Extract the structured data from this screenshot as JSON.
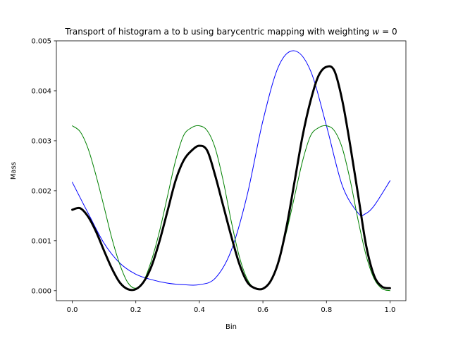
{
  "chart_data": {
    "type": "line",
    "title": "Transport of histogram a to b using barycentric mapping with weighting $w=0$",
    "xlabel": "Bin",
    "ylabel": "Mass",
    "xlim": [
      -0.05,
      1.05
    ],
    "ylim": [
      -0.0002,
      0.005
    ],
    "xticks": [
      "0.0",
      "0.2",
      "0.4",
      "0.6",
      "0.8",
      "1.0"
    ],
    "yticks": [
      "0.000",
      "0.001",
      "0.002",
      "0.003",
      "0.004",
      "0.005"
    ],
    "grid": false,
    "series": [
      {
        "color": "#0000ff",
        "linewidth": 1,
        "x": [
          0.0,
          0.05,
          0.1,
          0.15,
          0.2,
          0.25,
          0.3,
          0.35,
          0.4,
          0.45,
          0.5,
          0.55,
          0.6,
          0.65,
          0.7,
          0.75,
          0.8,
          0.85,
          0.9,
          0.92,
          0.95,
          1.0
        ],
        "y": [
          0.00217,
          0.00155,
          0.00095,
          0.00055,
          0.00033,
          0.00022,
          0.00015,
          0.00012,
          0.00012,
          0.00025,
          0.0008,
          0.0019,
          0.0034,
          0.0045,
          0.0048,
          0.0044,
          0.0033,
          0.0021,
          0.00155,
          0.00153,
          0.0017,
          0.0022
        ]
      },
      {
        "color": "#008000",
        "linewidth": 1,
        "x": [
          0.0,
          0.025,
          0.05,
          0.075,
          0.1,
          0.125,
          0.15,
          0.175,
          0.2,
          0.225,
          0.25,
          0.275,
          0.3,
          0.325,
          0.35,
          0.375,
          0.4,
          0.425,
          0.45,
          0.475,
          0.5,
          0.525,
          0.55,
          0.575,
          0.6,
          0.625,
          0.65,
          0.675,
          0.7,
          0.725,
          0.75,
          0.775,
          0.8,
          0.825,
          0.85,
          0.875,
          0.9,
          0.925,
          0.95,
          0.975,
          1.0
        ],
        "y": [
          0.0033,
          0.00318,
          0.00284,
          0.0023,
          0.00168,
          0.00104,
          0.00052,
          0.00016,
          5e-05,
          0.0002,
          0.00062,
          0.0012,
          0.0019,
          0.0026,
          0.0031,
          0.00326,
          0.0033,
          0.0032,
          0.00285,
          0.0022,
          0.0014,
          0.0007,
          0.00024,
          4e-05,
          5e-05,
          0.0002,
          0.00062,
          0.0012,
          0.0019,
          0.0026,
          0.0031,
          0.00326,
          0.0033,
          0.0032,
          0.00285,
          0.0022,
          0.0014,
          0.0007,
          0.00024,
          4e-05,
          0.0
        ]
      },
      {
        "color": "#000000",
        "linewidth": 3,
        "x": [
          0.0,
          0.025,
          0.05,
          0.075,
          0.1,
          0.125,
          0.15,
          0.175,
          0.2,
          0.225,
          0.25,
          0.275,
          0.3,
          0.325,
          0.35,
          0.375,
          0.4,
          0.425,
          0.45,
          0.475,
          0.5,
          0.525,
          0.55,
          0.575,
          0.6,
          0.625,
          0.65,
          0.675,
          0.7,
          0.725,
          0.75,
          0.775,
          0.8,
          0.825,
          0.85,
          0.875,
          0.9,
          0.925,
          0.95,
          0.975,
          1.0
        ],
        "y": [
          0.00162,
          0.00165,
          0.00148,
          0.00118,
          0.0008,
          0.00044,
          0.00016,
          3e-05,
          3e-05,
          0.00018,
          0.0005,
          0.001,
          0.0016,
          0.0022,
          0.0026,
          0.0028,
          0.0029,
          0.0028,
          0.0023,
          0.0017,
          0.0011,
          0.00055,
          0.00018,
          5e-05,
          4e-05,
          0.0002,
          0.0006,
          0.0013,
          0.0022,
          0.0031,
          0.0038,
          0.0043,
          0.00448,
          0.0044,
          0.0038,
          0.0029,
          0.0019,
          0.0009,
          0.0003,
          8e-05,
          5e-05
        ]
      }
    ]
  }
}
